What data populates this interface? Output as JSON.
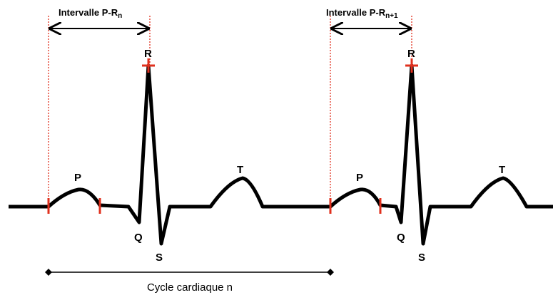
{
  "intervals": [
    {
      "label": "Intervalle P-R",
      "subscript": "n"
    },
    {
      "label": "Intervalle P-R",
      "subscript": "n+1"
    }
  ],
  "beats": [
    {
      "p": "P",
      "q": "Q",
      "r": "R",
      "s": "S",
      "t": "T"
    },
    {
      "p": "P",
      "q": "Q",
      "r": "R",
      "s": "S",
      "t": "T"
    }
  ],
  "cycle_label": "Cycle cardiaque n"
}
